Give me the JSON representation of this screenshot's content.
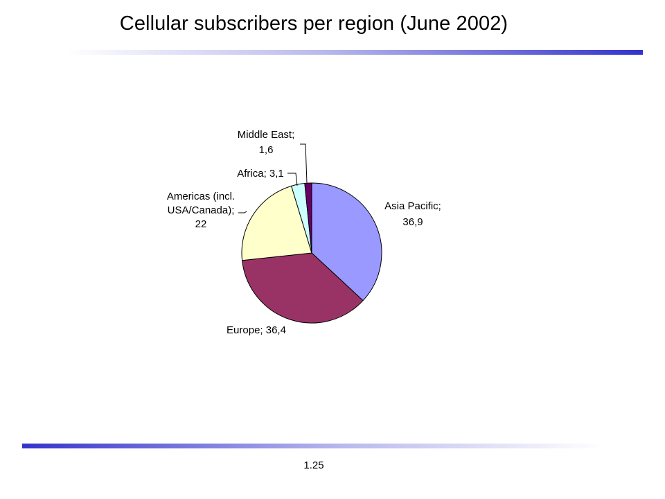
{
  "slide": {
    "title": "Cellular subscribers per region (June 2002)",
    "page_number": "1.25"
  },
  "colors": {
    "rule": "#3333cc"
  },
  "chart_data": {
    "type": "pie",
    "title": "",
    "data_labels": [
      [
        "Asia Pacific;",
        "36,9"
      ],
      [
        "Europe; 36,4"
      ],
      [
        "Americas (incl.",
        "USA/Canada);",
        "22"
      ],
      [
        "Africa; 3,1"
      ],
      [
        "Middle East;",
        "1,6"
      ]
    ],
    "slices": [
      {
        "label": "Asia Pacific",
        "value": 36.9,
        "color": "#9999ff"
      },
      {
        "label": "Europe",
        "value": 36.4,
        "color": "#993366"
      },
      {
        "label": "Americas (incl. USA/Canada)",
        "value": 22,
        "color": "#ffffcc"
      },
      {
        "label": "Africa",
        "value": 3.1,
        "color": "#ccffff"
      },
      {
        "label": "Middle East",
        "value": 1.6,
        "color": "#660066"
      }
    ],
    "start_angle": "12 o'clock",
    "direction": "clockwise",
    "legend": "none"
  }
}
